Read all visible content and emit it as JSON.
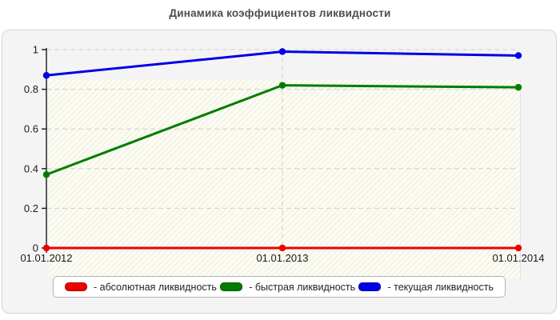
{
  "page": {
    "title": "Динамика коэффициентов ликвидности"
  },
  "chart_data": {
    "type": "line",
    "title": "Динамика коэффициентов ликвидности",
    "categories": [
      "01.01.2012",
      "01.01.2013",
      "01.01.2014"
    ],
    "series": [
      {
        "name": "абсолютная ликвидность",
        "legend_label": "- абсолютная ликвидность",
        "color": "#ee0000",
        "values": [
          0,
          0,
          0
        ]
      },
      {
        "name": "быстрая ликвидность",
        "legend_label": "- быстрая ликвидность",
        "color": "#007d00",
        "values": [
          0.37,
          0.82,
          0.81
        ]
      },
      {
        "name": "текущая ликвидность",
        "legend_label": "- текущая ликвидность",
        "color": "#0000e6",
        "values": [
          0.87,
          0.99,
          0.97
        ]
      }
    ],
    "xlabel": "",
    "ylabel": "",
    "ylim": [
      0,
      1
    ],
    "yticks": [
      {
        "value": 0,
        "label": "0"
      },
      {
        "value": 0.2,
        "label": "0.2"
      },
      {
        "value": 0.4,
        "label": "0.4"
      },
      {
        "value": 0.6,
        "label": "0.6"
      },
      {
        "value": 0.8,
        "label": "0.8"
      },
      {
        "value": 1,
        "label": "1"
      }
    ],
    "grid": {
      "horizontal": "dashed",
      "vertical_at_category": "01.01.2013",
      "color": "#cfcfcf"
    },
    "legend_position": "bottom",
    "plot_background": "#fcfcf2",
    "axis_color": "#1a1a1a"
  }
}
